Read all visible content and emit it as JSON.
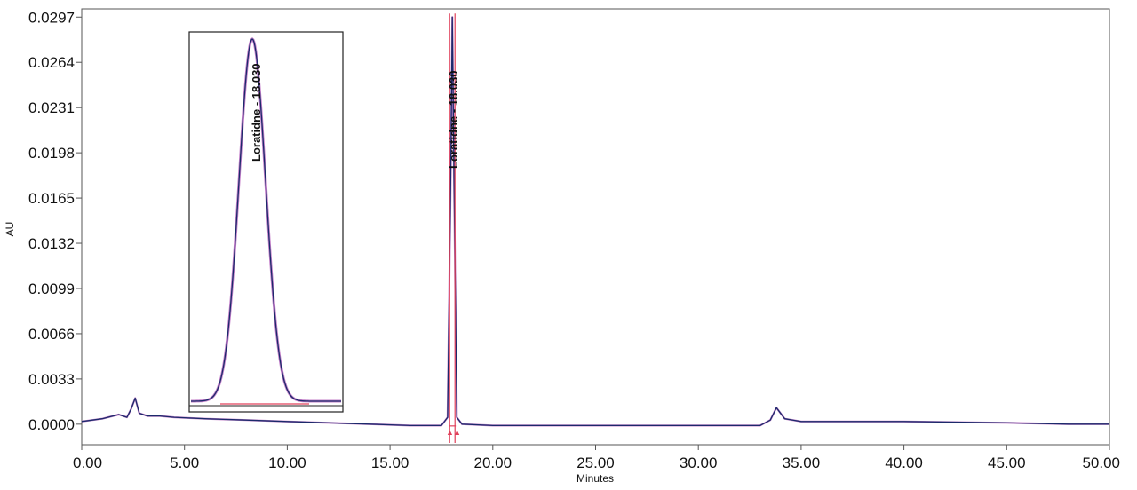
{
  "chart_data": {
    "type": "line",
    "xlabel": "Minutes",
    "ylabel": "AU",
    "xlim": [
      0,
      50
    ],
    "ylim": [
      -0.0015,
      0.0303
    ],
    "x_ticks": [
      "0.00",
      "5.00",
      "10.00",
      "15.00",
      "20.00",
      "25.00",
      "30.00",
      "35.00",
      "40.00",
      "45.00",
      "50.00"
    ],
    "y_ticks": [
      "0.0000",
      "0.0033",
      "0.0066",
      "0.0099",
      "0.0132",
      "0.0165",
      "0.0198",
      "0.0231",
      "0.0264",
      "0.0297"
    ],
    "x_tick_values": [
      0,
      5,
      10,
      15,
      20,
      25,
      30,
      35,
      40,
      45,
      50
    ],
    "y_tick_values": [
      0,
      0.0033,
      0.0066,
      0.0099,
      0.0132,
      0.0165,
      0.0198,
      0.0231,
      0.0264,
      0.0297
    ],
    "grid": false,
    "peak": {
      "name": "Loratidne",
      "retention_time": "18.030",
      "label": "Loratidne - 18.030",
      "height": 0.0297
    },
    "inset": {
      "label": "Loratidne - 18.030",
      "description": "zoomed peak"
    },
    "series": [
      {
        "x": [
          0,
          1,
          1.8,
          2.2,
          2.4,
          2.6,
          2.8,
          3.2,
          3.8,
          4.5,
          6,
          8,
          10,
          12,
          14,
          16,
          17.5,
          17.8,
          17.95,
          18.03,
          18.11,
          18.25,
          18.5,
          20,
          25,
          30,
          33,
          33.5,
          33.8,
          34.2,
          35,
          40,
          45,
          48,
          50
        ],
        "y": [
          0.0002,
          0.0004,
          0.0007,
          0.0005,
          0.0011,
          0.0019,
          0.0008,
          0.0006,
          0.0006,
          0.0005,
          0.0004,
          0.0003,
          0.0002,
          0.0001,
          0.0,
          -0.0001,
          -0.0001,
          0.0005,
          0.018,
          0.0297,
          0.018,
          0.0005,
          0.0,
          -0.0001,
          -0.0001,
          -0.0001,
          -0.0001,
          0.0003,
          0.0012,
          0.0004,
          0.0002,
          0.0002,
          0.0001,
          0.0,
          0.0
        ],
        "color": "#1c2a6b"
      }
    ],
    "colors": {
      "trace": "#1c2a6b",
      "trace_overlay": "#b055b8",
      "peak_marker": "#e0405a",
      "axis": "#555555"
    }
  }
}
